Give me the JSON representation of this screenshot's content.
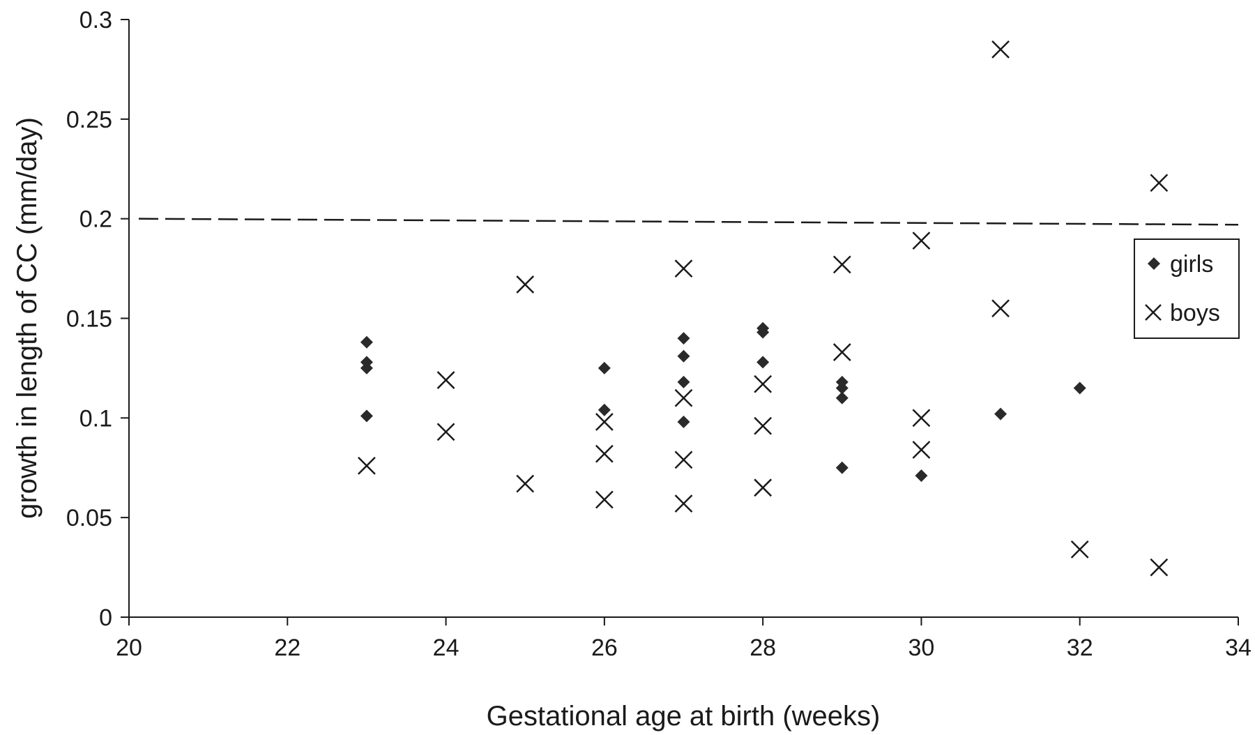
{
  "chart_data": {
    "type": "scatter",
    "title": "",
    "xlabel": "Gestational age at birth (weeks)",
    "ylabel": "growth in length of CC (mm/day)",
    "xlim": [
      20,
      34
    ],
    "ylim": [
      0,
      0.3
    ],
    "xticks": [
      "20",
      "22",
      "24",
      "26",
      "28",
      "30",
      "32",
      "34"
    ],
    "yticks": [
      "0",
      "0.05",
      "0.1",
      "0.15",
      "0.2",
      "0.25",
      "0.3"
    ],
    "grid": false,
    "legend_position": "right, below dashed line",
    "reference_line": {
      "style": "dashed",
      "y_start": 0.2,
      "y_end": 0.197
    },
    "series": [
      {
        "name": "girls",
        "marker": "diamond",
        "points": [
          [
            23,
            0.138
          ],
          [
            23,
            0.128
          ],
          [
            23,
            0.125
          ],
          [
            23,
            0.101
          ],
          [
            26,
            0.125
          ],
          [
            26,
            0.104
          ],
          [
            27,
            0.14
          ],
          [
            27,
            0.131
          ],
          [
            27,
            0.118
          ],
          [
            27,
            0.098
          ],
          [
            28,
            0.145
          ],
          [
            28,
            0.143
          ],
          [
            28,
            0.128
          ],
          [
            29,
            0.118
          ],
          [
            29,
            0.115
          ],
          [
            29,
            0.11
          ],
          [
            29,
            0.075
          ],
          [
            30,
            0.071
          ],
          [
            31,
            0.102
          ],
          [
            32,
            0.115
          ]
        ]
      },
      {
        "name": "boys",
        "marker": "x",
        "points": [
          [
            23,
            0.076
          ],
          [
            24,
            0.119
          ],
          [
            24,
            0.093
          ],
          [
            25,
            0.167
          ],
          [
            25,
            0.067
          ],
          [
            26,
            0.098
          ],
          [
            26,
            0.082
          ],
          [
            26,
            0.059
          ],
          [
            27,
            0.175
          ],
          [
            27,
            0.11
          ],
          [
            27,
            0.079
          ],
          [
            27,
            0.057
          ],
          [
            28,
            0.117
          ],
          [
            28,
            0.096
          ],
          [
            28,
            0.065
          ],
          [
            29,
            0.177
          ],
          [
            29,
            0.133
          ],
          [
            30,
            0.189
          ],
          [
            30,
            0.1
          ],
          [
            30,
            0.084
          ],
          [
            31,
            0.285
          ],
          [
            31,
            0.155
          ],
          [
            32,
            0.034
          ],
          [
            33,
            0.218
          ],
          [
            33,
            0.025
          ]
        ]
      }
    ]
  }
}
